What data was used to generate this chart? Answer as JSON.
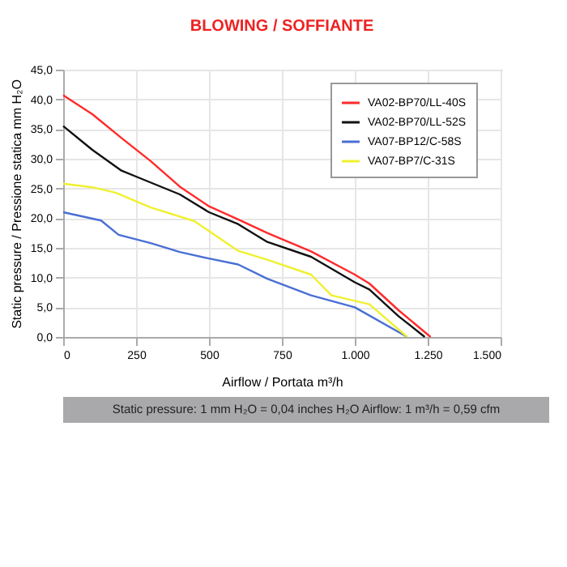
{
  "chart_data": {
    "type": "line",
    "title": "BLOWING / SOFFIANTE",
    "xlabel": "Airflow / Portata m³/h",
    "ylabel": "Static pressure / Pressione statica mm H₂O",
    "annotations": [
      "Static pressure: 1 mm H₂O = 0,04 inches H₂O     Airflow: 1 m³/h = 0,59 cfm"
    ],
    "xlim": [
      0,
      1500
    ],
    "xticks": [
      0,
      250,
      500,
      750,
      {
        "value": 1000,
        "label": "1.000"
      },
      {
        "value": 1250,
        "label": "1.250"
      },
      {
        "value": 1500,
        "label": "1.500"
      }
    ],
    "ylim": [
      0,
      45
    ],
    "yticks": [
      {
        "value": 0,
        "label": "0,0"
      },
      {
        "value": 5,
        "label": "5,0"
      },
      {
        "value": 10,
        "label": "10,0"
      },
      {
        "value": 15,
        "label": "15,0"
      },
      {
        "value": 20,
        "label": "20,0"
      },
      {
        "value": 25,
        "label": "25,0"
      },
      {
        "value": 30,
        "label": "30,0"
      },
      {
        "value": 35,
        "label": "35,0"
      },
      {
        "value": 40,
        "label": "40,0"
      },
      {
        "value": 45,
        "label": "45,0"
      }
    ],
    "grid": true,
    "legend": "top right",
    "marker": "none",
    "series": [
      {
        "name": "VA02-BP70/LL-40S",
        "color": "#ff2a2a",
        "x": [
          0,
          100,
          200,
          300,
          400,
          500,
          600,
          700,
          850,
          1000,
          1050,
          1150,
          1260
        ],
        "values": [
          40.7,
          37.5,
          33.5,
          29.6,
          25.3,
          22,
          19.8,
          17.5,
          14.4,
          10.5,
          9,
          4.5,
          0
        ]
      },
      {
        "name": "VA02-BP70/LL-52S",
        "color": "#111111",
        "x": [
          0,
          100,
          200,
          250,
          400,
          500,
          600,
          700,
          850,
          1000,
          1050,
          1150,
          1240
        ],
        "values": [
          35.5,
          31.5,
          28,
          27,
          24,
          21,
          19,
          16,
          13.5,
          9.2,
          8,
          3.5,
          0
        ]
      },
      {
        "name": "VA07-BP12/C-58S",
        "color": "#4a6fd4",
        "x": [
          0,
          130,
          190,
          300,
          400,
          500,
          600,
          700,
          850,
          1000,
          1180
        ],
        "values": [
          21,
          19.6,
          17.2,
          15.8,
          14.3,
          13.2,
          12.2,
          9.8,
          7,
          5,
          0
        ]
      },
      {
        "name": "VA07-BP7/C-31S",
        "color": "#f0f030",
        "x": [
          0,
          100,
          180,
          300,
          450,
          600,
          700,
          850,
          920,
          1050,
          1180
        ],
        "values": [
          25.8,
          25.2,
          24.3,
          21.8,
          19.5,
          14.5,
          13,
          10.5,
          7,
          5.5,
          0
        ]
      }
    ]
  }
}
